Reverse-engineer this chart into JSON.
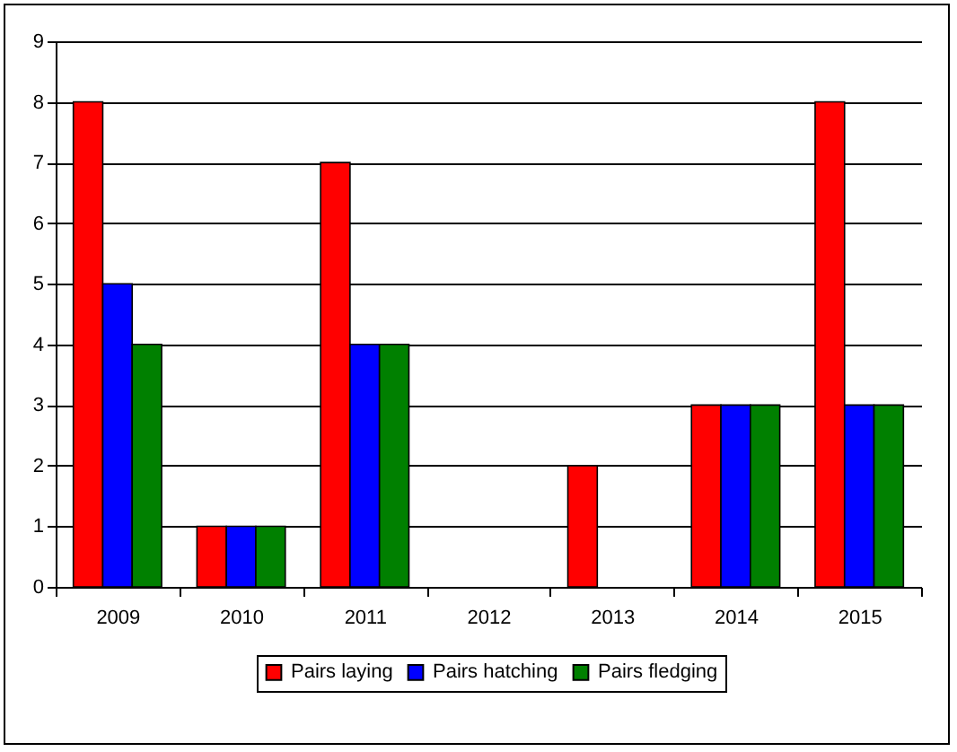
{
  "chart_data": {
    "type": "bar",
    "categories": [
      "2009",
      "2010",
      "2011",
      "2012",
      "2013",
      "2014",
      "2015"
    ],
    "series": [
      {
        "name": "Pairs laying",
        "color": "#ff0000",
        "values": [
          8,
          1,
          7,
          0,
          2,
          3,
          8
        ]
      },
      {
        "name": "Pairs hatching",
        "color": "#0000ff",
        "values": [
          5,
          1,
          4,
          0,
          0,
          3,
          3
        ]
      },
      {
        "name": "Pairs fledging",
        "color": "#008000",
        "values": [
          4,
          1,
          4,
          0,
          0,
          3,
          3
        ]
      }
    ],
    "ylim": [
      0,
      9
    ],
    "yticks": [
      0,
      1,
      2,
      3,
      4,
      5,
      6,
      7,
      8,
      9
    ],
    "grid": "y",
    "legend": "bottom"
  }
}
